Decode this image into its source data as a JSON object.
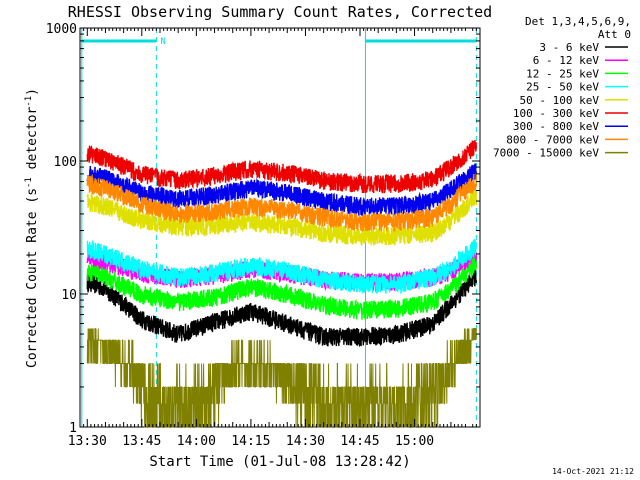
{
  "chart_data": {
    "type": "line",
    "title": "RHESSI Observing Summary Count Rates, Corrected",
    "xlabel": "Start Time (01-Jul-08 13:28:42)",
    "ylabel_main": "Corrected Count Rate (s",
    "ylabel_sup1": "-1",
    "ylabel_mid": " detector",
    "ylabel_sup2": "-1",
    "ylabel_end": ")",
    "y_scale": "log",
    "ylim": [
      1,
      1000
    ],
    "xlim_min": [
      808,
      918
    ],
    "x_ticks": [
      {
        "label": "13:30",
        "min": 810
      },
      {
        "label": "13:45",
        "min": 825
      },
      {
        "label": "14:00",
        "min": 840
      },
      {
        "label": "14:15",
        "min": 855
      },
      {
        "label": "14:30",
        "min": 870
      },
      {
        "label": "14:45",
        "min": 885
      },
      {
        "label": "15:00",
        "min": 900
      }
    ],
    "y_ticks": [
      {
        "label": "1",
        "v": 1
      },
      {
        "label": "10",
        "v": 10
      },
      {
        "label": "100",
        "v": 100
      },
      {
        "label": "1000",
        "v": 1000
      }
    ],
    "legend_header": [
      "Det 1,3,4,5,6,9,",
      "Att 0"
    ],
    "night_marker_label": "N",
    "night_intervals_min": [
      [
        808.5,
        829.0
      ],
      [
        886.5,
        917.0
      ]
    ],
    "series": [
      {
        "name": "3 - 6 keV",
        "color": "#000000",
        "x": [
          810,
          815,
          825,
          835,
          845,
          855,
          865,
          875,
          885,
          895,
          905,
          910,
          917
        ],
        "y": [
          12.5,
          11.0,
          6.5,
          5.0,
          6.2,
          7.5,
          6.0,
          4.8,
          4.8,
          5.0,
          6.0,
          8.5,
          14.0
        ]
      },
      {
        "name": "6 - 12 keV",
        "color": "#ff00ff",
        "x": [
          810,
          815,
          825,
          835,
          845,
          855,
          865,
          875,
          885,
          895,
          905,
          910,
          917
        ],
        "y": [
          18.0,
          17.5,
          14.5,
          13.0,
          14.0,
          15.5,
          14.5,
          13.0,
          12.3,
          12.5,
          13.5,
          15.0,
          19.0
        ]
      },
      {
        "name": "12 - 25 keV",
        "color": "#00ff00",
        "x": [
          810,
          815,
          825,
          835,
          845,
          855,
          865,
          875,
          885,
          895,
          905,
          910,
          917
        ],
        "y": [
          15.0,
          13.5,
          10.0,
          8.8,
          9.5,
          11.5,
          10.0,
          8.3,
          7.6,
          7.8,
          8.8,
          11.0,
          17.0
        ]
      },
      {
        "name": "25 - 50 keV",
        "color": "#00ffff",
        "x": [
          810,
          815,
          825,
          835,
          845,
          855,
          865,
          875,
          885,
          895,
          905,
          910,
          917
        ],
        "y": [
          22.0,
          20.0,
          15.5,
          13.5,
          14.5,
          16.5,
          15.0,
          13.0,
          12.0,
          12.0,
          13.5,
          16.0,
          23.0
        ]
      },
      {
        "name": "50 - 100 keV",
        "color": "#e0e000",
        "x": [
          810,
          815,
          825,
          835,
          845,
          855,
          865,
          875,
          885,
          895,
          905,
          910,
          917
        ],
        "y": [
          50.0,
          46.0,
          36.0,
          32.0,
          33.0,
          35.0,
          33.0,
          29.0,
          27.5,
          27.5,
          29.0,
          36.0,
          55.0
        ]
      },
      {
        "name": "100 - 300 keV",
        "color": "#ee0000",
        "x": [
          810,
          815,
          825,
          835,
          845,
          855,
          865,
          875,
          885,
          895,
          905,
          910,
          917
        ],
        "y": [
          115.0,
          105.0,
          80.0,
          72.0,
          78.0,
          88.0,
          82.0,
          72.0,
          68.0,
          68.0,
          73.0,
          92.0,
          130.0
        ]
      },
      {
        "name": "300 - 800 keV",
        "color": "#0000ee",
        "x": [
          810,
          815,
          825,
          835,
          845,
          855,
          865,
          875,
          885,
          895,
          905,
          910,
          917
        ],
        "y": [
          80.0,
          75.0,
          58.0,
          52.0,
          56.0,
          63.0,
          58.0,
          50.0,
          46.0,
          46.0,
          50.0,
          62.0,
          85.0
        ]
      },
      {
        "name": "800 - 7000 keV",
        "color": "#ff8800",
        "x": [
          810,
          815,
          825,
          835,
          845,
          855,
          865,
          875,
          885,
          895,
          905,
          910,
          917
        ],
        "y": [
          68.0,
          63.0,
          48.0,
          40.0,
          42.0,
          46.0,
          43.0,
          38.0,
          35.0,
          35.0,
          38.0,
          48.0,
          72.0
        ]
      },
      {
        "name": "7000 - 15000 keV",
        "color": "#808000",
        "x": [
          810,
          813,
          818,
          822,
          825,
          830,
          840,
          845,
          850,
          855,
          860,
          870,
          875,
          880,
          885,
          890,
          895,
          900,
          905,
          910,
          915,
          917
        ],
        "y": [
          4.5,
          4.0,
          3.5,
          3.0,
          2.0,
          1.5,
          1.5,
          2.0,
          3.0,
          3.0,
          3.0,
          2.0,
          1.5,
          1.5,
          1.5,
          1.5,
          1.5,
          1.5,
          2.0,
          3.0,
          4.5,
          5.5
        ]
      }
    ]
  },
  "footer": {
    "timestamp": "14-Oct-2021 21:12"
  }
}
